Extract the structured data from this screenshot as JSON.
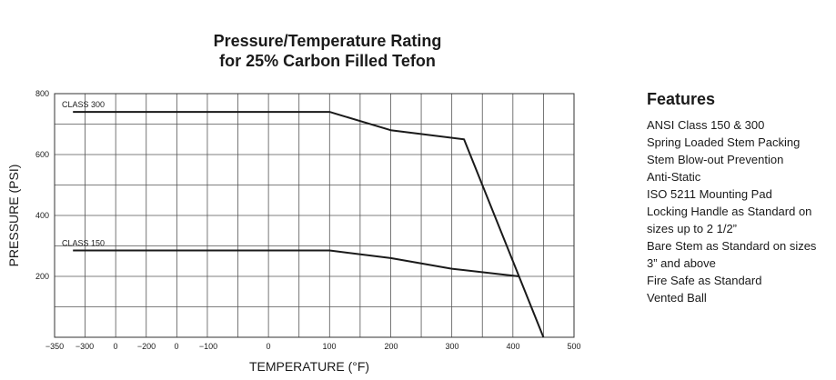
{
  "chart_data": {
    "type": "line",
    "title_line1": "Pressure/Temperature Rating",
    "title_line2": "for 25% Carbon Filled Tefon",
    "xlabel": "TEMPERATURE (°F)",
    "ylabel": "PRESSURE (PSI)",
    "xlim": [
      -350,
      500
    ],
    "ylim": [
      0,
      800
    ],
    "grid": true,
    "x_tick_labels": [
      "−350",
      "−300",
      "0",
      "−200",
      "0",
      "−100",
      "0",
      "100",
      "200",
      "300",
      "400",
      "500"
    ],
    "y_ticks": [
      200,
      400,
      600,
      800
    ],
    "series": [
      {
        "name": "CLASS 300",
        "x": [
          -320,
          100,
          200,
          320,
          450
        ],
        "y": [
          740,
          740,
          680,
          650,
          0
        ]
      },
      {
        "name": "CLASS 150",
        "x": [
          -320,
          100,
          200,
          300,
          410
        ],
        "y": [
          285,
          285,
          260,
          225,
          200
        ]
      }
    ]
  },
  "features": {
    "heading": "Features",
    "items": [
      "ANSI Class 150 & 300",
      "Spring Loaded Stem Packing",
      "Stem Blow-out Prevention",
      "Anti-Static",
      "ISO 5211 Mounting Pad",
      "Locking Handle as Standard on",
      "sizes up to 2 1/2”",
      "Bare Stem as Standard on sizes",
      "3” and above",
      "Fire Safe as Standard",
      "Vented Ball"
    ]
  }
}
